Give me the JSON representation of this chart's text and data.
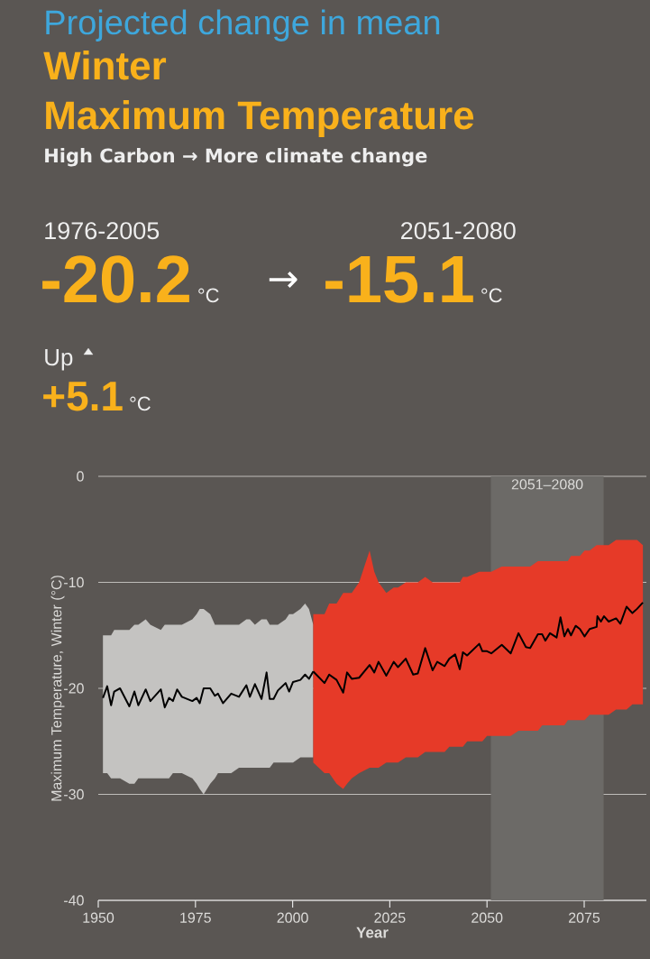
{
  "chart_data": [
    {
      "type": "other",
      "title": "Projected change in mean",
      "subtitle": "High Carbon → More climate change",
      "annotations": [
        "Winter",
        "Maximum Temperature",
        "1976-2005",
        "-20.2",
        "°C",
        "→",
        "2051-2080",
        "-15.1",
        "°C",
        "Up",
        "+5.1",
        "°C"
      ]
    },
    {
      "type": "line",
      "xlabel": "Year",
      "ylabel": "Maximum Temperature, Winter (°C)",
      "xlim": [
        1950,
        2091
      ],
      "ylim": [
        -40,
        0
      ],
      "xticks": [
        1950,
        1975,
        2000,
        2025,
        2050,
        2075
      ],
      "yticks": [
        -40,
        -30,
        -20,
        -10,
        0
      ],
      "grid": "y",
      "bands": [
        {
          "axis": "x",
          "from": 2051,
          "to": 2080,
          "label": "2051–2080",
          "color": "#6c6a67"
        }
      ],
      "series": [
        {
          "color": "#000000",
          "x": [
            1951.2,
            1952.3,
            1953.3,
            1954.1,
            1955.6,
            1958.0,
            1959.3,
            1960.3,
            1962.2,
            1963.4,
            1966.1,
            1967.1,
            1968.2,
            1969.2,
            1970.3,
            1971.5,
            1974.2,
            1975.3,
            1976.1,
            1977.1,
            1978.8,
            1980.0,
            1980.8,
            1982.1,
            1984.2,
            1986.2,
            1988.1,
            1989.0,
            1990.3,
            1992.0,
            1993.3,
            1994.1,
            1995.1,
            1996.2,
            1998.2,
            1999.1,
            2000.1,
            2002.0,
            2003.2,
            2004.2,
            2005.3
          ],
          "values": [
            -20.9,
            -19.8,
            -21.6,
            -20.3,
            -20.0,
            -21.7,
            -20.3,
            -21.6,
            -20.1,
            -21.2,
            -20.1,
            -21.8,
            -20.9,
            -21.2,
            -20.1,
            -20.8,
            -21.2,
            -20.9,
            -21.4,
            -20.0,
            -20.0,
            -20.7,
            -20.5,
            -21.4,
            -20.5,
            -20.8,
            -19.7,
            -20.8,
            -19.6,
            -21.0,
            -18.5,
            -21.0,
            -21.0,
            -20.2,
            -19.5,
            -20.3,
            -19.4,
            -19.2,
            -18.7,
            -19.1,
            -18.4
          ],
          "upper": [
            -15,
            -15,
            -15,
            -14.5,
            -14.5,
            -14.5,
            -14,
            -14,
            -13.5,
            -14,
            -14.5,
            -14,
            -14,
            -14,
            -14,
            -14,
            -13.5,
            -13,
            -12.5,
            -12.5,
            -13,
            -14,
            -14,
            -14,
            -14,
            -14,
            -13.5,
            -13.5,
            -14,
            -13.5,
            -13.5,
            -14,
            -14,
            -14,
            -13.5,
            -13,
            -13,
            -12.5,
            -12,
            -12.5,
            -14
          ],
          "lower": [
            -28,
            -28,
            -28.5,
            -28.5,
            -28.5,
            -29,
            -29,
            -28.5,
            -28.5,
            -28.5,
            -28.5,
            -28.5,
            -28.5,
            -28,
            -28,
            -28,
            -28.5,
            -29,
            -29.5,
            -30,
            -29,
            -28.5,
            -28,
            -28,
            -28,
            -27.5,
            -27.5,
            -27.5,
            -27.5,
            -27.5,
            -27.5,
            -27.5,
            -27,
            -27,
            -27,
            -27,
            -27,
            -26.5,
            -26.5,
            -26.5,
            -26.5
          ]
        },
        {
          "color": "#000000",
          "x": [
            2005.3,
            2008.2,
            2009.4,
            2011.3,
            2013.0,
            2014.0,
            2015.2,
            2017.1,
            2019.8,
            2021.0,
            2022.1,
            2024.1,
            2026.0,
            2027.1,
            2029.1,
            2031.0,
            2032.2,
            2034.1,
            2036.0,
            2037.2,
            2039.1,
            2040.3,
            2041.8,
            2043.0,
            2043.8,
            2044.9,
            2048.0,
            2048.8,
            2050.0,
            2051.1,
            2053.8,
            2056.1,
            2058.1,
            2060.0,
            2061.1,
            2063.1,
            2064.2,
            2065.0,
            2066.2,
            2067.9,
            2068.9,
            2069.9,
            2070.8,
            2071.6,
            2072.8,
            2073.9,
            2075.1,
            2076.4,
            2078.2,
            2078.4,
            2079.3,
            2080.1,
            2081.3,
            2083.2,
            2084.3,
            2085.9,
            2087.4,
            2088.6,
            2090.1
          ],
          "values": [
            -18.4,
            -19.5,
            -18.7,
            -19.2,
            -20.4,
            -18.5,
            -19.1,
            -19.0,
            -17.8,
            -18.5,
            -17.5,
            -18.8,
            -17.5,
            -18.0,
            -17.2,
            -18.7,
            -18.6,
            -16.2,
            -18.3,
            -17.5,
            -17.9,
            -17.2,
            -16.8,
            -18.2,
            -16.6,
            -16.9,
            -15.8,
            -16.5,
            -16.5,
            -16.7,
            -15.9,
            -16.7,
            -14.8,
            -16.1,
            -16.2,
            -14.9,
            -14.9,
            -15.5,
            -14.8,
            -15.2,
            -13.3,
            -15.1,
            -14.4,
            -15.0,
            -14.1,
            -14.4,
            -15.1,
            -14.4,
            -14.2,
            -13.2,
            -13.7,
            -13.2,
            -13.7,
            -13.4,
            -13.9,
            -12.3,
            -12.9,
            -12.5,
            -11.9
          ],
          "upper": [
            -13,
            -13,
            -12,
            -12,
            -11,
            -11,
            -11,
            -10,
            -7,
            -9,
            -10,
            -11,
            -10.5,
            -10.5,
            -10,
            -10,
            -10,
            -9.5,
            -10,
            -10,
            -10,
            -10,
            -10,
            -10,
            -9.5,
            -9.5,
            -9,
            -9,
            -9,
            -9,
            -8.5,
            -8.5,
            -8.5,
            -8.5,
            -8.5,
            -8,
            -8,
            -8,
            -8,
            -8,
            -8,
            -8,
            -8,
            -7.5,
            -7.5,
            -7.5,
            -7,
            -7,
            -6.5,
            -6.5,
            -6.5,
            -6.5,
            -6.5,
            -6,
            -6,
            -6,
            -6,
            -6,
            -6.5
          ],
          "lower": [
            -27,
            -28,
            -28,
            -29,
            -29.5,
            -29,
            -28.5,
            -28,
            -27.5,
            -27.5,
            -27.5,
            -27,
            -27,
            -27,
            -26.5,
            -26.5,
            -26.5,
            -26,
            -26,
            -26,
            -26,
            -25.5,
            -25.5,
            -25.5,
            -25.5,
            -25,
            -25,
            -25,
            -24.5,
            -24.5,
            -24.5,
            -24.5,
            -24,
            -24,
            -24,
            -24,
            -23.5,
            -23.5,
            -23.5,
            -23.5,
            -23.5,
            -23.5,
            -23,
            -23,
            -23,
            -23,
            -23,
            -22.5,
            -22.5,
            -22.5,
            -22.5,
            -22.5,
            -22.5,
            -22,
            -22,
            -22,
            -21.5,
            -21.5,
            -21.5
          ]
        }
      ]
    }
  ]
}
